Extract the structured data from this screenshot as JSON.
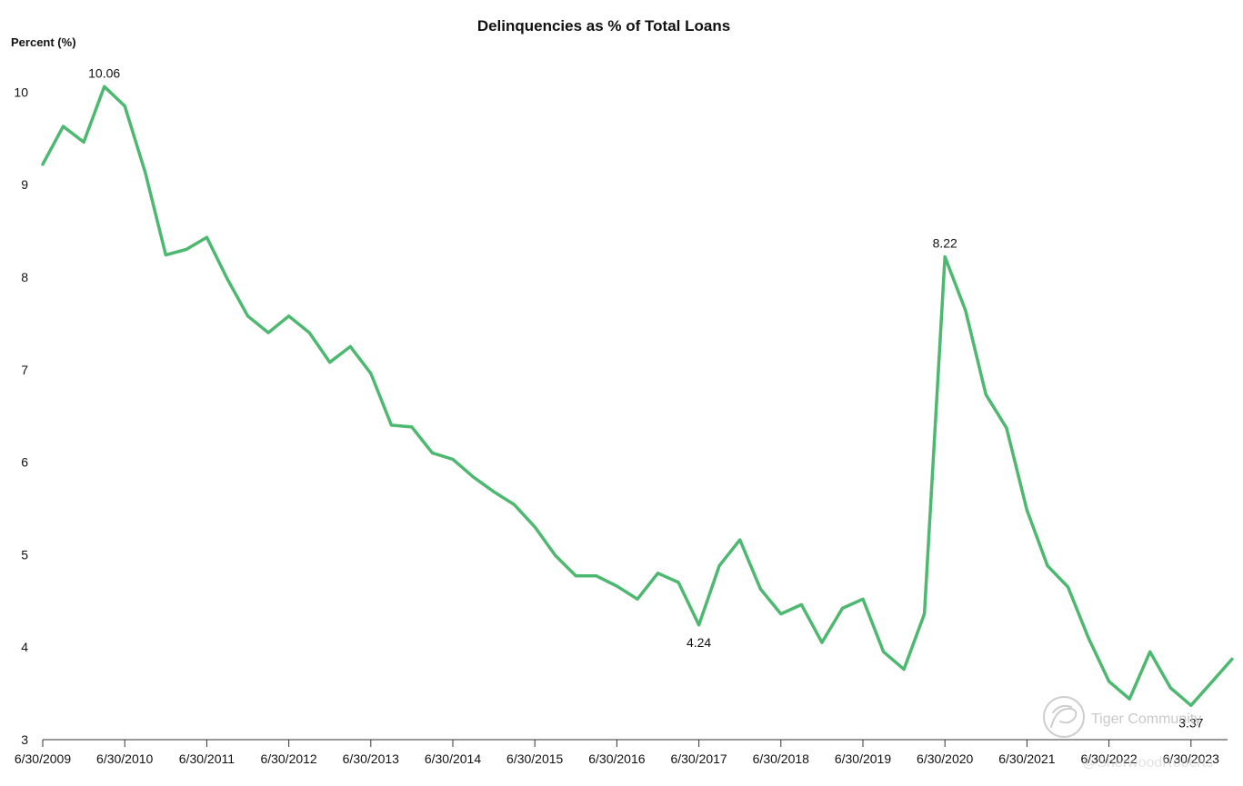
{
  "chart_data": {
    "type": "line",
    "title": "Delinquencies as % of Total Loans",
    "ylabel": "Percent (%)",
    "xlabel": "",
    "ylim": [
      3,
      10.3
    ],
    "yticks": [
      3,
      4,
      5,
      6,
      7,
      8,
      9,
      10
    ],
    "xticks": [
      "6/30/2009",
      "6/30/2010",
      "6/30/2011",
      "6/30/2012",
      "6/30/2013",
      "6/30/2014",
      "6/30/2015",
      "6/30/2016",
      "6/30/2017",
      "6/30/2018",
      "6/30/2019",
      "6/30/2020",
      "6/30/2021",
      "6/30/2022",
      "6/30/2023"
    ],
    "grid": false,
    "line_color": "#4db870",
    "series": [
      {
        "x": [
          "6/30/2009",
          "9/30/2009",
          "12/31/2009",
          "3/31/2010",
          "6/30/2010",
          "9/30/2010",
          "12/31/2010",
          "3/31/2011",
          "6/30/2011",
          "9/30/2011",
          "12/31/2011",
          "3/31/2012",
          "6/30/2012",
          "9/30/2012",
          "12/31/2012",
          "3/31/2013",
          "6/30/2013",
          "9/30/2013",
          "12/31/2013",
          "3/31/2014",
          "6/30/2014",
          "9/30/2014",
          "12/31/2014",
          "3/31/2015",
          "6/30/2015",
          "9/30/2015",
          "12/31/2015",
          "3/31/2016",
          "6/30/2016",
          "9/30/2016",
          "12/31/2016",
          "3/31/2017",
          "6/30/2017",
          "9/30/2017",
          "12/31/2017",
          "3/31/2018",
          "6/30/2018",
          "9/30/2018",
          "12/31/2018",
          "3/31/2019",
          "6/30/2019",
          "9/30/2019",
          "12/31/2019",
          "3/31/2020",
          "6/30/2020",
          "9/30/2020",
          "12/31/2020",
          "3/31/2021",
          "6/30/2021",
          "9/30/2021",
          "12/31/2021",
          "3/31/2022",
          "6/30/2022",
          "9/30/2022",
          "12/31/2022",
          "3/31/2023",
          "6/30/2023",
          "9/30/2023",
          "12/31/2023"
        ],
        "values": [
          9.22,
          9.63,
          9.46,
          10.06,
          9.85,
          9.13,
          8.24,
          8.3,
          8.43,
          7.98,
          7.58,
          7.4,
          7.58,
          7.4,
          7.08,
          7.25,
          6.96,
          6.4,
          6.38,
          6.1,
          6.03,
          5.84,
          5.68,
          5.54,
          5.3,
          4.99,
          4.77,
          4.77,
          4.66,
          4.52,
          4.8,
          4.7,
          4.24,
          4.88,
          5.16,
          4.63,
          4.36,
          4.46,
          4.05,
          4.42,
          4.52,
          3.95,
          3.76,
          4.36,
          8.22,
          7.64,
          6.73,
          6.37,
          5.48,
          4.88,
          4.65,
          4.1,
          3.63,
          3.44,
          3.95,
          3.56,
          3.37,
          3.62,
          3.87
        ]
      }
    ],
    "annotations": [
      {
        "x": "3/31/2010",
        "y": 10.06,
        "label": "10.06",
        "position": "above"
      },
      {
        "x": "6/30/2017",
        "y": 4.24,
        "label": "4.24",
        "position": "below"
      },
      {
        "x": "6/30/2020",
        "y": 8.22,
        "label": "8.22",
        "position": "above"
      },
      {
        "x": "6/30/2023",
        "y": 3.37,
        "label": "3.37",
        "position": "below"
      }
    ]
  },
  "watermark": {
    "text": "Tiger Community",
    "subtext": "@SherwoodRoberts",
    "icon": "tiger-logo-icon"
  }
}
